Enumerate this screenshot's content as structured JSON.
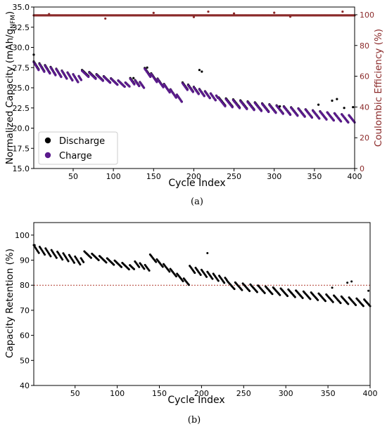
{
  "chart_data": [
    {
      "type": "scatter",
      "panel_label": "(a)",
      "xlabel": "Cycle Index",
      "ylabel": "Normalized Capacity (mAh/g",
      "ylabel_sub": "NFM",
      "ylabel_close": ")",
      "y2label": "Coulombic Efficiency (%)",
      "xlim": [
        1,
        400
      ],
      "ylim": [
        15.0,
        35.0
      ],
      "y2lim": [
        0,
        105
      ],
      "xticks": [
        50,
        100,
        150,
        200,
        250,
        300,
        350,
        400
      ],
      "yticks": [
        "15.0",
        "17.5",
        "20.0",
        "22.5",
        "25.0",
        "27.5",
        "30.0",
        "32.5",
        "35.0"
      ],
      "y2ticks": [
        "0",
        "20",
        "40",
        "60",
        "80",
        "100"
      ],
      "legend": {
        "position": "lower-left",
        "entries": [
          "Discharge",
          "Charge"
        ]
      },
      "series": [
        {
          "name": "Discharge",
          "color": "#000000",
          "segments": [
            {
              "x_start": 1,
              "x_end": 60,
              "y_start": 27.8,
              "y_end": 25.9,
              "saw_amplitude": 0.9,
              "saw_period": 7
            },
            {
              "x_start": 61,
              "x_end": 120,
              "y_start": 26.9,
              "y_end": 25.2,
              "saw_amplitude": 0.6,
              "saw_period": 9
            },
            {
              "x_start": 121,
              "x_end": 138,
              "y_start": 25.9,
              "y_end": 25.2,
              "saw_amplitude": 0.6,
              "saw_period": 6
            },
            {
              "x_start": 139,
              "x_end": 185,
              "y_start": 27.2,
              "y_end": 23.4,
              "saw_amplitude": 0.5,
              "saw_period": 8
            },
            {
              "x_start": 186,
              "x_end": 230,
              "y_start": 25.3,
              "y_end": 23.6,
              "saw_amplitude": 0.7,
              "saw_period": 7
            },
            {
              "x_start": 231,
              "x_end": 400,
              "y_start": 23.3,
              "y_end": 21.0,
              "saw_amplitude": 1.0,
              "saw_period": 9
            }
          ],
          "outliers": [
            {
              "x": 1,
              "y": 29.1
            },
            {
              "x": 125,
              "y": 26.2
            },
            {
              "x": 142,
              "y": 27.5
            },
            {
              "x": 207,
              "y": 27.2
            },
            {
              "x": 210,
              "y": 27.0
            },
            {
              "x": 307,
              "y": 22.7
            },
            {
              "x": 355,
              "y": 22.9
            },
            {
              "x": 372,
              "y": 23.4
            },
            {
              "x": 378,
              "y": 23.6
            },
            {
              "x": 387,
              "y": 22.5
            },
            {
              "x": 398,
              "y": 22.6
            }
          ]
        },
        {
          "name": "Charge",
          "color": "#5a1a8c",
          "segments": [
            {
              "x_start": 1,
              "x_end": 60,
              "y_start": 27.7,
              "y_end": 25.9,
              "saw_amplitude": 0.9,
              "saw_period": 7
            },
            {
              "x_start": 61,
              "x_end": 120,
              "y_start": 26.8,
              "y_end": 25.2,
              "saw_amplitude": 0.6,
              "saw_period": 9
            },
            {
              "x_start": 121,
              "x_end": 138,
              "y_start": 25.8,
              "y_end": 25.2,
              "saw_amplitude": 0.6,
              "saw_period": 6
            },
            {
              "x_start": 139,
              "x_end": 185,
              "y_start": 27.1,
              "y_end": 23.4,
              "saw_amplitude": 0.5,
              "saw_period": 8
            },
            {
              "x_start": 186,
              "x_end": 230,
              "y_start": 25.2,
              "y_end": 23.6,
              "saw_amplitude": 0.7,
              "saw_period": 7
            },
            {
              "x_start": 231,
              "x_end": 400,
              "y_start": 23.2,
              "y_end": 21.0,
              "saw_amplitude": 1.0,
              "saw_period": 9
            }
          ]
        },
        {
          "name": "Coulombic Efficiency",
          "axis": "right",
          "color": "#8b2a2a",
          "baseline": 99.6,
          "outliers": [
            {
              "x": 20,
              "y": 100.4
            },
            {
              "x": 90,
              "y": 97.5
            },
            {
              "x": 150,
              "y": 101.2
            },
            {
              "x": 200,
              "y": 98.5
            },
            {
              "x": 218,
              "y": 102.0
            },
            {
              "x": 250,
              "y": 100.8
            },
            {
              "x": 300,
              "y": 101.3
            },
            {
              "x": 320,
              "y": 98.7
            },
            {
              "x": 385,
              "y": 102.0
            }
          ]
        }
      ]
    },
    {
      "type": "scatter",
      "panel_label": "(b)",
      "xlabel": "Cycle Index",
      "ylabel": "Capacity Retention (%)",
      "xlim": [
        1,
        400
      ],
      "ylim": [
        40,
        105
      ],
      "xticks": [
        50,
        100,
        150,
        200,
        250,
        300,
        350,
        400
      ],
      "yticks": [
        40,
        50,
        60,
        70,
        80,
        90,
        100
      ],
      "reference_line": {
        "y": 80,
        "style": "dotted",
        "color": "#b03a2e"
      },
      "series": [
        {
          "name": "",
          "color": "#000000",
          "segments": [
            {
              "x_start": 1,
              "x_end": 60,
              "y_start": 94.5,
              "y_end": 89.0,
              "saw_amplitude": 3.0,
              "saw_period": 7
            },
            {
              "x_start": 61,
              "x_end": 120,
              "y_start": 92.5,
              "y_end": 86.5,
              "saw_amplitude": 2.0,
              "saw_period": 9
            },
            {
              "x_start": 121,
              "x_end": 138,
              "y_start": 88.5,
              "y_end": 86.5,
              "saw_amplitude": 2.0,
              "saw_period": 6
            },
            {
              "x_start": 139,
              "x_end": 185,
              "y_start": 91.5,
              "y_end": 80.5,
              "saw_amplitude": 1.5,
              "saw_period": 8
            },
            {
              "x_start": 186,
              "x_end": 230,
              "y_start": 86.5,
              "y_end": 81.5,
              "saw_amplitude": 2.5,
              "saw_period": 7
            },
            {
              "x_start": 231,
              "x_end": 400,
              "y_start": 80.0,
              "y_end": 72.5,
              "saw_amplitude": 3.0,
              "saw_period": 9
            }
          ],
          "outliers": [
            {
              "x": 2,
              "y": 96.0
            },
            {
              "x": 207,
              "y": 92.8
            },
            {
              "x": 355,
              "y": 79.0
            },
            {
              "x": 373,
              "y": 81.0
            },
            {
              "x": 378,
              "y": 81.5
            },
            {
              "x": 398,
              "y": 77.8
            }
          ]
        }
      ]
    }
  ]
}
